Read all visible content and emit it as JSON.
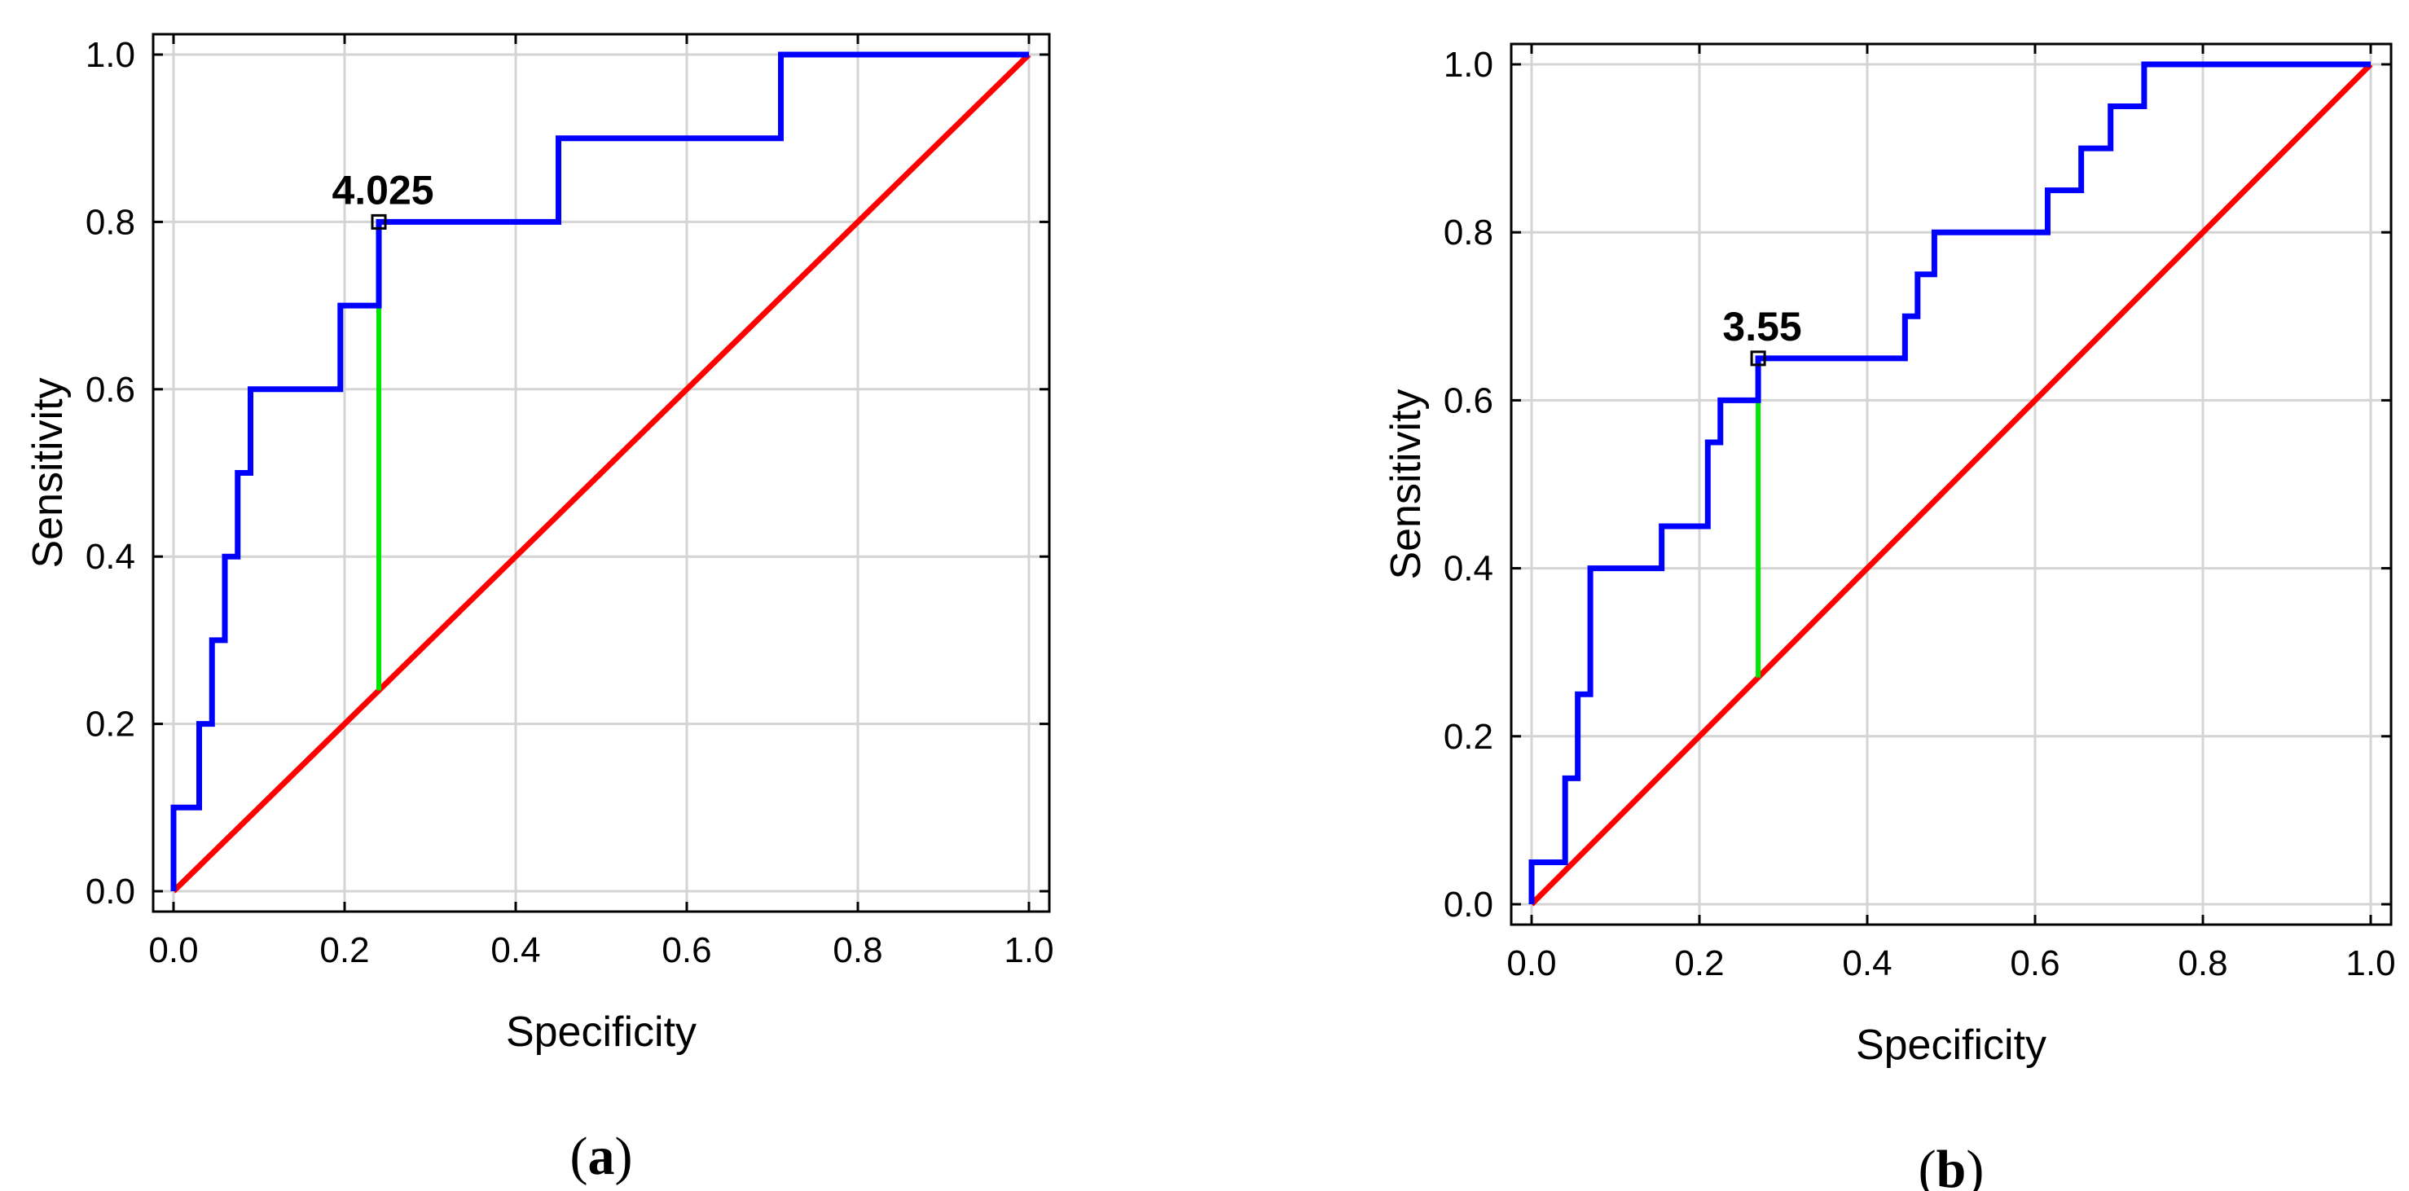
{
  "colors": {
    "roc_curve": "#0000ff",
    "reference_line": "#ff0000",
    "cutoff_line": "#00e600",
    "grid": "#d4d4d4",
    "frame": "#000000"
  },
  "chart_data": [
    {
      "type": "line",
      "caption_letter": "a",
      "xlabel": "Specificity",
      "ylabel": "Sensitivity",
      "xlim": [
        0,
        1
      ],
      "ylim": [
        0,
        1
      ],
      "xticks": [
        "0.0",
        "0.2",
        "0.4",
        "0.6",
        "0.8",
        "1.0"
      ],
      "yticks": [
        "0.0",
        "0.2",
        "0.4",
        "0.6",
        "0.8",
        "1.0"
      ],
      "grid": true,
      "series": [
        {
          "x": [
            0,
            0,
            0.03,
            0.03,
            0.045,
            0.045,
            0.06,
            0.06,
            0.075,
            0.075,
            0.09,
            0.09,
            0.1,
            0.1,
            0.195,
            0.195,
            0.24,
            0.24,
            0.45,
            0.45,
            0.71,
            0.71,
            1.0
          ],
          "y": [
            0,
            0.1,
            0.1,
            0.2,
            0.2,
            0.3,
            0.3,
            0.4,
            0.4,
            0.5,
            0.5,
            0.6,
            0.6,
            0.6,
            0.6,
            0.7,
            0.7,
            0.8,
            0.8,
            0.9,
            0.9,
            1.0,
            1.0
          ]
        },
        {
          "x": [
            0,
            1
          ],
          "y": [
            0,
            1
          ]
        }
      ],
      "cutoff": {
        "label": "4.025",
        "x": 0.24,
        "y_top": 0.8,
        "y_bottom": 0.24
      }
    },
    {
      "type": "line",
      "caption_letter": "b",
      "xlabel": "Specificity",
      "ylabel": "Sensitivity",
      "xlim": [
        0,
        1
      ],
      "ylim": [
        0,
        1
      ],
      "xticks": [
        "0.0",
        "0.2",
        "0.4",
        "0.6",
        "0.8",
        "1.0"
      ],
      "yticks": [
        "0.0",
        "0.2",
        "0.4",
        "0.6",
        "0.8",
        "1.0"
      ],
      "grid": true,
      "series": [
        {
          "x": [
            0,
            0,
            0.04,
            0.04,
            0.055,
            0.055,
            0.07,
            0.07,
            0.08,
            0.08,
            0.155,
            0.155,
            0.21,
            0.21,
            0.225,
            0.225,
            0.27,
            0.27,
            0.445,
            0.445,
            0.46,
            0.46,
            0.48,
            0.48,
            0.615,
            0.615,
            0.655,
            0.655,
            0.69,
            0.69,
            0.71,
            0.71,
            0.73,
            0.73,
            1.0
          ],
          "y": [
            0,
            0.05,
            0.05,
            0.15,
            0.15,
            0.25,
            0.25,
            0.4,
            0.4,
            0.4,
            0.4,
            0.45,
            0.45,
            0.55,
            0.55,
            0.6,
            0.6,
            0.65,
            0.65,
            0.7,
            0.7,
            0.75,
            0.75,
            0.8,
            0.8,
            0.85,
            0.85,
            0.9,
            0.9,
            0.95,
            0.95,
            0.95,
            0.95,
            1.0,
            1.0
          ]
        },
        {
          "x": [
            0,
            1
          ],
          "y": [
            0,
            1
          ]
        }
      ],
      "cutoff": {
        "label": "3.55",
        "x": 0.27,
        "y_top": 0.65,
        "y_bottom": 0.27
      }
    }
  ]
}
